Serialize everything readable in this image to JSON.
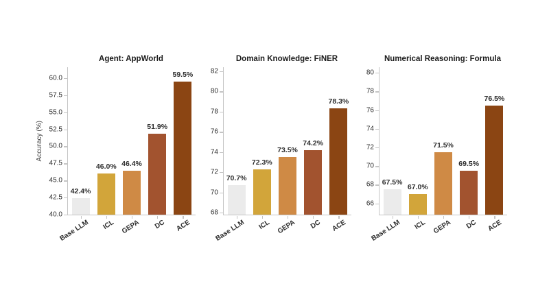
{
  "figure": {
    "background": "#ffffff",
    "axis_color": "#c4c4c4",
    "tick_label_color": "#2e2e2e",
    "title_color": "#1a1a1a",
    "value_label_color": "#2e2e2e",
    "bar_colors": [
      "#ebebeb",
      "#d2a53a",
      "#cf8a45",
      "#a2532f",
      "#8b4513"
    ]
  },
  "chart_data": [
    {
      "type": "bar",
      "title": "Agent: AppWorld",
      "ylabel": "Accuracy (%)",
      "xlabel": "",
      "categories": [
        "Base LLM",
        "ICL",
        "GEPA",
        "DC",
        "ACE"
      ],
      "values": [
        42.4,
        46.0,
        46.4,
        51.9,
        59.5
      ],
      "value_labels": [
        "42.4%",
        "46.0%",
        "46.4%",
        "51.9%",
        "59.5%"
      ],
      "ylim": [
        40.0,
        61.6
      ],
      "yticks": [
        40.0,
        42.5,
        45.0,
        47.5,
        50.0,
        52.5,
        55.0,
        57.5,
        60.0
      ],
      "ytick_labels": [
        "40.0",
        "42.5",
        "45.0",
        "47.5",
        "50.0",
        "52.5",
        "55.0",
        "57.5",
        "60.0"
      ],
      "grid": false,
      "legend": "none"
    },
    {
      "type": "bar",
      "title": "Domain Knowledge: FiNER",
      "ylabel": "",
      "xlabel": "",
      "categories": [
        "Base LLM",
        "ICL",
        "GEPA",
        "DC",
        "ACE"
      ],
      "values": [
        70.7,
        72.3,
        73.5,
        74.2,
        78.3
      ],
      "value_labels": [
        "70.7%",
        "72.3%",
        "73.5%",
        "74.2%",
        "78.3%"
      ],
      "ylim": [
        67.8,
        82.4
      ],
      "yticks": [
        68,
        70,
        72,
        74,
        76,
        78,
        80,
        82
      ],
      "ytick_labels": [
        "68",
        "70",
        "72",
        "74",
        "76",
        "78",
        "80",
        "82"
      ],
      "grid": false,
      "legend": "none"
    },
    {
      "type": "bar",
      "title": "Numerical Reasoning: Formula",
      "ylabel": "",
      "xlabel": "",
      "categories": [
        "Base LLM",
        "ICL",
        "GEPA",
        "DC",
        "ACE"
      ],
      "values": [
        67.5,
        67.0,
        71.5,
        69.5,
        76.5
      ],
      "value_labels": [
        "67.5%",
        "67.0%",
        "71.5%",
        "69.5%",
        "76.5%"
      ],
      "ylim": [
        64.8,
        80.6
      ],
      "yticks": [
        66,
        68,
        70,
        72,
        74,
        76,
        78,
        80
      ],
      "ytick_labels": [
        "66",
        "68",
        "70",
        "72",
        "74",
        "76",
        "78",
        "80"
      ],
      "grid": false,
      "legend": "none"
    }
  ]
}
